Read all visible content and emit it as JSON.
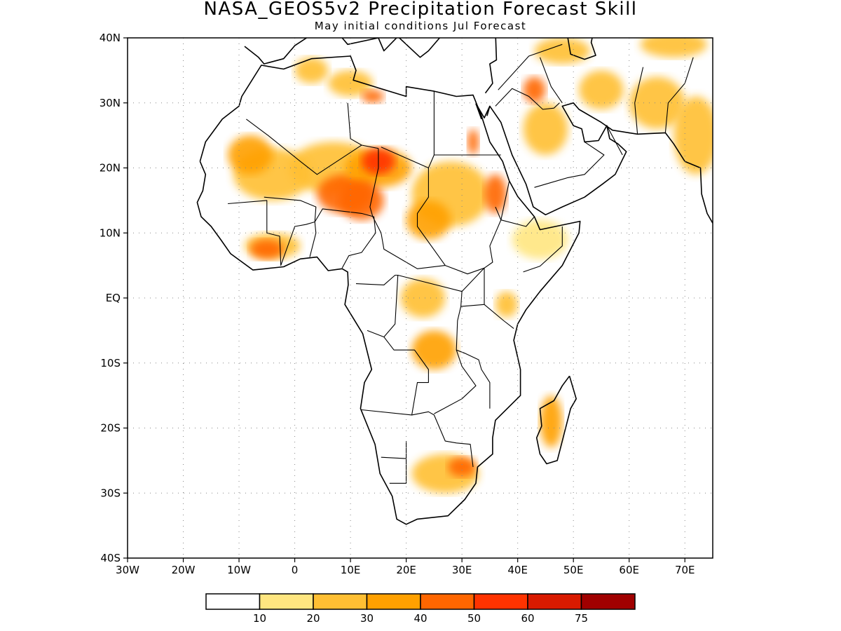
{
  "title": "NASA_GEOS5v2 Precipitation Forecast Skill",
  "subtitle": "May initial conditions  Jul Forecast",
  "map": {
    "lon_range": [
      -30,
      75
    ],
    "lat_range": [
      -40,
      40
    ],
    "lat_ticks": [
      {
        "value": 40,
        "label": "40N"
      },
      {
        "value": 30,
        "label": "30N"
      },
      {
        "value": 20,
        "label": "20N"
      },
      {
        "value": 10,
        "label": "10N"
      },
      {
        "value": 0,
        "label": "EQ"
      },
      {
        "value": -10,
        "label": "10S"
      },
      {
        "value": -20,
        "label": "20S"
      },
      {
        "value": -30,
        "label": "30S"
      },
      {
        "value": -40,
        "label": "40S"
      }
    ],
    "lon_ticks": [
      {
        "value": -30,
        "label": "30W"
      },
      {
        "value": -20,
        "label": "20W"
      },
      {
        "value": -10,
        "label": "10W"
      },
      {
        "value": 0,
        "label": "0"
      },
      {
        "value": 10,
        "label": "10E"
      },
      {
        "value": 20,
        "label": "20E"
      },
      {
        "value": 30,
        "label": "30E"
      },
      {
        "value": 40,
        "label": "40E"
      },
      {
        "value": 50,
        "label": "50E"
      },
      {
        "value": 60,
        "label": "60E"
      },
      {
        "value": 70,
        "label": "70E"
      }
    ],
    "gridlines": "dotted",
    "colorbar": {
      "colors": [
        "#ffffff",
        "#ffe680",
        "#ffbf33",
        "#ffa000",
        "#ff6600",
        "#ff3300",
        "#d91a00",
        "#a00000"
      ],
      "labels": [
        "10",
        "20",
        "30",
        "40",
        "50",
        "60",
        "75"
      ]
    },
    "skill_patches": [
      {
        "lon": 7,
        "lat": 20,
        "rx": 8,
        "ry": 4,
        "level": 2
      },
      {
        "lon": 9,
        "lat": 16,
        "rx": 5,
        "ry": 3,
        "level": 4
      },
      {
        "lon": 15,
        "lat": 20,
        "rx": 6,
        "ry": 3,
        "level": 3
      },
      {
        "lon": 12,
        "lat": 15,
        "rx": 4,
        "ry": 3,
        "level": 4
      },
      {
        "lon": 15,
        "lat": 21,
        "rx": 3,
        "ry": 2,
        "level": 5
      },
      {
        "lon": -4,
        "lat": 19,
        "rx": 7,
        "ry": 4,
        "level": 2
      },
      {
        "lon": -8,
        "lat": 22,
        "rx": 4,
        "ry": 3,
        "level": 3
      },
      {
        "lon": -4,
        "lat": 8,
        "rx": 5,
        "ry": 2,
        "level": 2
      },
      {
        "lon": -5,
        "lat": 7.5,
        "rx": 3,
        "ry": 1.5,
        "level": 4
      },
      {
        "lon": 28,
        "lat": 16,
        "rx": 7,
        "ry": 5,
        "level": 2
      },
      {
        "lon": 24,
        "lat": 12,
        "rx": 4,
        "ry": 3,
        "level": 3
      },
      {
        "lon": 36,
        "lat": 16,
        "rx": 2,
        "ry": 3,
        "level": 4
      },
      {
        "lon": 23,
        "lat": 0,
        "rx": 4,
        "ry": 3,
        "level": 2
      },
      {
        "lon": 25,
        "lat": -8,
        "rx": 4,
        "ry": 3,
        "level": 3
      },
      {
        "lon": 38,
        "lat": -1,
        "rx": 2,
        "ry": 2,
        "level": 2
      },
      {
        "lon": 44,
        "lat": 9,
        "rx": 5,
        "ry": 3,
        "level": 1
      },
      {
        "lon": 46,
        "lat": -19,
        "rx": 2,
        "ry": 4,
        "level": 3
      },
      {
        "lon": 27,
        "lat": -27,
        "rx": 6,
        "ry": 3,
        "level": 2
      },
      {
        "lon": 30,
        "lat": -26,
        "rx": 2.5,
        "ry": 1.5,
        "level": 4
      },
      {
        "lon": 45,
        "lat": 26,
        "rx": 4,
        "ry": 4,
        "level": 2
      },
      {
        "lon": 55,
        "lat": 32,
        "rx": 4,
        "ry": 3,
        "level": 2
      },
      {
        "lon": 65,
        "lat": 30,
        "rx": 5,
        "ry": 4,
        "level": 2
      },
      {
        "lon": 72,
        "lat": 25,
        "rx": 4,
        "ry": 6,
        "level": 2
      },
      {
        "lon": 48,
        "lat": 38,
        "rx": 5,
        "ry": 2,
        "level": 2
      },
      {
        "lon": 68,
        "lat": 39,
        "rx": 6,
        "ry": 2,
        "level": 2
      },
      {
        "lon": 3,
        "lat": 35,
        "rx": 3,
        "ry": 2,
        "level": 2
      },
      {
        "lon": 10,
        "lat": 33,
        "rx": 4,
        "ry": 2,
        "level": 2
      },
      {
        "lon": 14,
        "lat": 31,
        "rx": 2,
        "ry": 1,
        "level": 4
      },
      {
        "lon": 32,
        "lat": 24,
        "rx": 1,
        "ry": 2,
        "level": 4
      },
      {
        "lon": 43,
        "lat": 32,
        "rx": 2,
        "ry": 2,
        "level": 4
      }
    ]
  }
}
